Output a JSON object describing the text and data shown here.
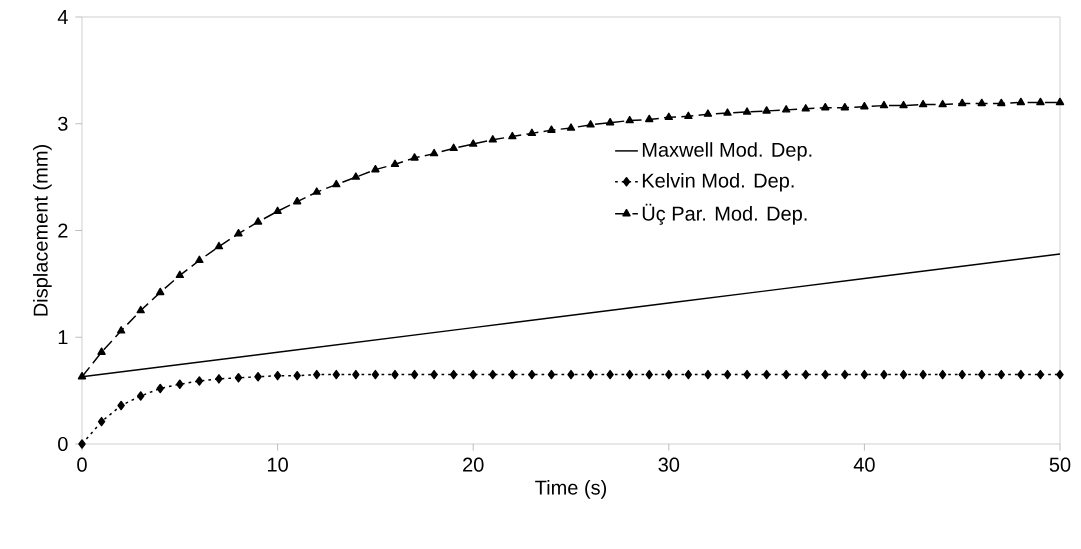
{
  "chart_data": {
    "type": "line",
    "xlabel": "Time (s)",
    "ylabel": "Displacement (mm)",
    "xlim": [
      0,
      50
    ],
    "ylim": [
      0,
      4
    ],
    "xticks": [
      0,
      10,
      20,
      30,
      40,
      50
    ],
    "yticks": [
      0,
      1,
      2,
      3,
      4
    ],
    "grid": false,
    "legend": "right",
    "series": [
      {
        "name": "Maxwell Mod. Dep.",
        "color": "#000000",
        "marker": "none",
        "line_style": "solid",
        "x": [
          0,
          10,
          20,
          30,
          40,
          50
        ],
        "values": [
          0.63,
          0.86,
          1.09,
          1.32,
          1.55,
          1.78
        ]
      },
      {
        "name": "Kelvin Mod. Dep.",
        "color": "#000000",
        "marker": "diamond",
        "line_style": "dotted",
        "x": [
          0,
          1,
          2,
          3,
          4,
          5,
          6,
          7,
          8,
          9,
          10,
          11,
          12,
          13,
          14,
          15,
          16,
          17,
          18,
          19,
          20,
          21,
          22,
          23,
          24,
          25,
          26,
          27,
          28,
          29,
          30,
          31,
          32,
          33,
          34,
          35,
          36,
          37,
          38,
          39,
          40,
          41,
          42,
          43,
          44,
          45,
          46,
          47,
          48,
          49,
          50
        ],
        "values": [
          0.0,
          0.21,
          0.36,
          0.45,
          0.52,
          0.56,
          0.59,
          0.61,
          0.62,
          0.63,
          0.64,
          0.64,
          0.65,
          0.65,
          0.65,
          0.65,
          0.65,
          0.65,
          0.65,
          0.65,
          0.65,
          0.65,
          0.65,
          0.65,
          0.65,
          0.65,
          0.65,
          0.65,
          0.65,
          0.65,
          0.65,
          0.65,
          0.65,
          0.65,
          0.65,
          0.65,
          0.65,
          0.65,
          0.65,
          0.65,
          0.65,
          0.65,
          0.65,
          0.65,
          0.65,
          0.65,
          0.65,
          0.65,
          0.65,
          0.65,
          0.65
        ]
      },
      {
        "name": "Üç Par. Mod. Dep.",
        "color": "#000000",
        "marker": "triangle",
        "line_style": "dashed",
        "x": [
          0,
          1,
          2,
          3,
          4,
          5,
          6,
          7,
          8,
          9,
          10,
          11,
          12,
          13,
          14,
          15,
          16,
          17,
          18,
          19,
          20,
          21,
          22,
          23,
          24,
          25,
          26,
          27,
          28,
          29,
          30,
          31,
          32,
          33,
          34,
          35,
          36,
          37,
          38,
          39,
          40,
          41,
          42,
          43,
          44,
          45,
          46,
          47,
          48,
          49,
          50
        ],
        "values": [
          0.63,
          0.86,
          1.06,
          1.25,
          1.42,
          1.58,
          1.72,
          1.85,
          1.97,
          2.08,
          2.18,
          2.27,
          2.36,
          2.43,
          2.5,
          2.57,
          2.62,
          2.68,
          2.72,
          2.77,
          2.81,
          2.85,
          2.88,
          2.91,
          2.94,
          2.96,
          2.99,
          3.01,
          3.03,
          3.04,
          3.06,
          3.07,
          3.09,
          3.1,
          3.11,
          3.12,
          3.13,
          3.14,
          3.15,
          3.15,
          3.16,
          3.17,
          3.17,
          3.18,
          3.18,
          3.19,
          3.19,
          3.19,
          3.2,
          3.2,
          3.2
        ]
      }
    ]
  }
}
